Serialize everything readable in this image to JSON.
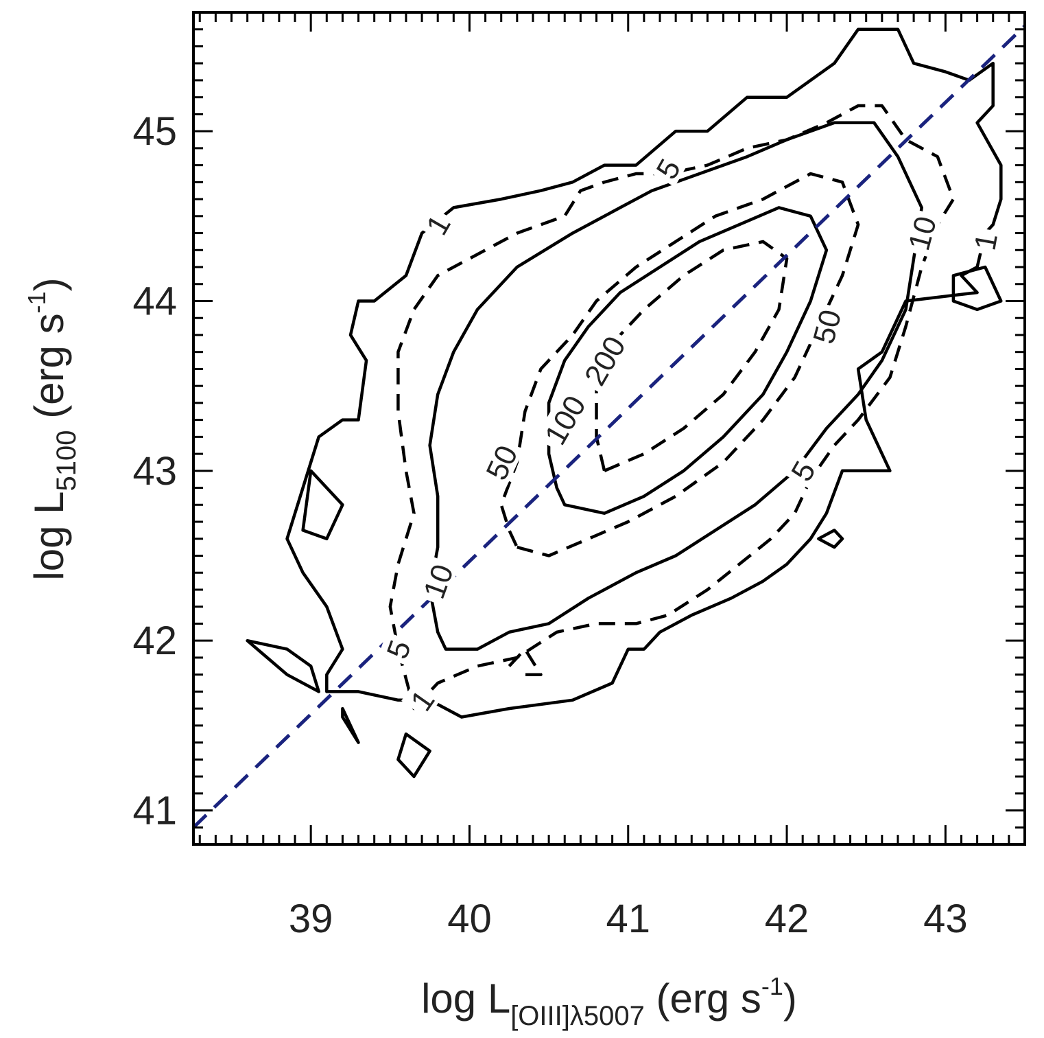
{
  "chart_data": {
    "type": "contour",
    "xlabel": {
      "main": "log L",
      "sub": "[OIII]λ5007",
      "unit_open": " (erg s",
      "sup": "-1",
      "unit_close": ")"
    },
    "ylabel": {
      "main": "log L",
      "sub": "5100",
      "unit_open": " (erg s",
      "sup": "-1",
      "unit_close": ")"
    },
    "xlim": [
      38.26,
      43.5
    ],
    "ylim": [
      40.8,
      45.7
    ],
    "xticks": [
      "39",
      "40",
      "41",
      "42",
      "43"
    ],
    "yticks": [
      "41",
      "42",
      "43",
      "44",
      "45"
    ],
    "x_minor_step": 0.1,
    "y_minor_step": 0.1,
    "contour_levels": [
      "1",
      "5",
      "10",
      "50",
      "100",
      "200"
    ],
    "reference_line": {
      "style": "dashed",
      "color": "#1a237e",
      "points": [
        [
          38.26,
          40.9
        ],
        [
          43.5,
          45.62
        ]
      ]
    },
    "contours": [
      {
        "level": "1",
        "style": "solid",
        "closed": true,
        "points": [
          [
            39.1,
            41.7
          ],
          [
            39.3,
            41.7
          ],
          [
            39.55,
            41.65
          ],
          [
            39.75,
            41.65
          ],
          [
            39.95,
            41.55
          ],
          [
            40.25,
            41.6
          ],
          [
            40.65,
            41.65
          ],
          [
            40.9,
            41.75
          ],
          [
            41.0,
            41.95
          ],
          [
            41.1,
            41.95
          ],
          [
            41.2,
            42.05
          ],
          [
            41.4,
            42.15
          ],
          [
            41.65,
            42.25
          ],
          [
            41.85,
            42.35
          ],
          [
            42.0,
            42.45
          ],
          [
            42.15,
            42.6
          ],
          [
            42.25,
            42.75
          ],
          [
            42.35,
            43.0
          ],
          [
            42.65,
            43.0
          ],
          [
            42.5,
            43.3
          ],
          [
            42.45,
            43.6
          ],
          [
            42.6,
            43.7
          ],
          [
            42.75,
            44.0
          ],
          [
            43.2,
            44.05
          ],
          [
            43.1,
            44.15
          ],
          [
            43.2,
            44.2
          ],
          [
            43.25,
            44.4
          ],
          [
            43.3,
            44.45
          ],
          [
            43.35,
            44.6
          ],
          [
            43.35,
            44.8
          ],
          [
            43.2,
            45.05
          ],
          [
            43.3,
            45.15
          ],
          [
            43.3,
            45.4
          ],
          [
            43.15,
            45.3
          ],
          [
            43.0,
            45.35
          ],
          [
            42.8,
            45.4
          ],
          [
            42.7,
            45.6
          ],
          [
            42.45,
            45.6
          ],
          [
            42.3,
            45.4
          ],
          [
            42.0,
            45.2
          ],
          [
            41.75,
            45.2
          ],
          [
            41.5,
            45.0
          ],
          [
            41.3,
            45.0
          ],
          [
            41.05,
            44.8
          ],
          [
            40.85,
            44.8
          ],
          [
            40.65,
            44.7
          ],
          [
            40.45,
            44.65
          ],
          [
            40.2,
            44.6
          ],
          [
            39.9,
            44.55
          ],
          [
            39.7,
            44.4
          ],
          [
            39.6,
            44.15
          ],
          [
            39.4,
            44.0
          ],
          [
            39.3,
            44.0
          ],
          [
            39.25,
            43.8
          ],
          [
            39.35,
            43.65
          ],
          [
            39.3,
            43.3
          ],
          [
            39.2,
            43.3
          ],
          [
            39.05,
            43.2
          ],
          [
            38.95,
            42.9
          ],
          [
            38.85,
            42.6
          ],
          [
            38.95,
            42.4
          ],
          [
            39.1,
            42.2
          ],
          [
            39.2,
            41.95
          ],
          [
            39.1,
            41.8
          ],
          [
            39.1,
            41.7
          ]
        ]
      },
      {
        "level": "1",
        "style": "solid",
        "closed": true,
        "points": [
          [
            39.0,
            43.0
          ],
          [
            39.2,
            42.8
          ],
          [
            39.1,
            42.6
          ],
          [
            38.95,
            42.65
          ],
          [
            39.0,
            43.0
          ]
        ]
      },
      {
        "level": "1",
        "style": "solid",
        "closed": true,
        "points": [
          [
            38.6,
            42.0
          ],
          [
            38.85,
            41.95
          ],
          [
            39.0,
            41.85
          ],
          [
            39.05,
            41.7
          ],
          [
            38.85,
            41.8
          ],
          [
            38.6,
            42.0
          ]
        ]
      },
      {
        "level": "1",
        "style": "solid",
        "closed": true,
        "points": [
          [
            39.2,
            41.6
          ],
          [
            39.25,
            41.5
          ],
          [
            39.3,
            41.4
          ],
          [
            39.2,
            41.55
          ],
          [
            39.2,
            41.6
          ]
        ]
      },
      {
        "level": "1",
        "style": "solid",
        "closed": true,
        "points": [
          [
            39.55,
            41.3
          ],
          [
            39.65,
            41.2
          ],
          [
            39.75,
            41.35
          ],
          [
            39.6,
            41.45
          ],
          [
            39.55,
            41.3
          ]
        ]
      },
      {
        "level": "1",
        "style": "solid",
        "closed": true,
        "points": [
          [
            42.2,
            42.6
          ],
          [
            42.3,
            42.55
          ],
          [
            42.35,
            42.6
          ],
          [
            42.3,
            42.65
          ],
          [
            42.2,
            42.6
          ]
        ]
      },
      {
        "level": "1",
        "style": "solid",
        "closed": true,
        "points": [
          [
            43.05,
            44.15
          ],
          [
            43.25,
            44.2
          ],
          [
            43.35,
            44.0
          ],
          [
            43.2,
            43.95
          ],
          [
            43.05,
            44.0
          ],
          [
            43.05,
            44.15
          ]
        ]
      },
      {
        "level": "5",
        "style": "dashed",
        "closed": true,
        "points": [
          [
            39.65,
            41.6
          ],
          [
            39.8,
            41.75
          ],
          [
            40.05,
            41.85
          ],
          [
            40.3,
            41.9
          ],
          [
            40.55,
            42.05
          ],
          [
            40.8,
            42.1
          ],
          [
            41.05,
            42.1
          ],
          [
            41.25,
            42.15
          ],
          [
            41.5,
            42.3
          ],
          [
            41.7,
            42.45
          ],
          [
            41.9,
            42.6
          ],
          [
            42.05,
            42.75
          ],
          [
            42.15,
            42.95
          ],
          [
            42.3,
            43.15
          ],
          [
            42.45,
            43.3
          ],
          [
            42.65,
            43.55
          ],
          [
            42.75,
            43.85
          ],
          [
            42.85,
            44.2
          ],
          [
            42.95,
            44.45
          ],
          [
            43.05,
            44.6
          ],
          [
            42.95,
            44.85
          ],
          [
            42.75,
            44.95
          ],
          [
            42.6,
            45.15
          ],
          [
            42.45,
            45.15
          ],
          [
            42.25,
            45.05
          ],
          [
            42.0,
            44.95
          ],
          [
            41.75,
            44.9
          ],
          [
            41.5,
            44.8
          ],
          [
            41.25,
            44.75
          ],
          [
            41.05,
            44.75
          ],
          [
            40.85,
            44.7
          ],
          [
            40.7,
            44.65
          ],
          [
            40.6,
            44.5
          ],
          [
            40.3,
            44.4
          ],
          [
            40.1,
            44.3
          ],
          [
            39.8,
            44.15
          ],
          [
            39.65,
            43.95
          ],
          [
            39.55,
            43.7
          ],
          [
            39.55,
            43.35
          ],
          [
            39.6,
            43.0
          ],
          [
            39.65,
            42.75
          ],
          [
            39.55,
            42.45
          ],
          [
            39.5,
            42.2
          ],
          [
            39.55,
            41.95
          ],
          [
            39.65,
            41.6
          ]
        ]
      },
      {
        "level": "5",
        "style": "dashed",
        "closed": false,
        "points": [
          [
            40.25,
            41.85
          ],
          [
            40.35,
            41.95
          ],
          [
            40.45,
            41.8
          ],
          [
            40.35,
            41.8
          ]
        ]
      },
      {
        "level": "10",
        "style": "solid",
        "closed": true,
        "points": [
          [
            39.85,
            41.95
          ],
          [
            40.05,
            41.95
          ],
          [
            40.25,
            42.05
          ],
          [
            40.5,
            42.1
          ],
          [
            40.75,
            42.25
          ],
          [
            41.05,
            42.4
          ],
          [
            41.3,
            42.5
          ],
          [
            41.55,
            42.65
          ],
          [
            41.8,
            42.8
          ],
          [
            42.05,
            43.0
          ],
          [
            42.25,
            43.25
          ],
          [
            42.45,
            43.45
          ],
          [
            42.6,
            43.65
          ],
          [
            42.75,
            43.95
          ],
          [
            42.8,
            44.25
          ],
          [
            42.85,
            44.55
          ],
          [
            42.7,
            44.85
          ],
          [
            42.55,
            45.05
          ],
          [
            42.3,
            45.05
          ],
          [
            42.0,
            44.95
          ],
          [
            41.75,
            44.85
          ],
          [
            41.45,
            44.75
          ],
          [
            41.15,
            44.65
          ],
          [
            40.95,
            44.55
          ],
          [
            40.65,
            44.4
          ],
          [
            40.3,
            44.2
          ],
          [
            40.05,
            43.95
          ],
          [
            39.9,
            43.7
          ],
          [
            39.8,
            43.45
          ],
          [
            39.75,
            43.15
          ],
          [
            39.8,
            42.85
          ],
          [
            39.8,
            42.55
          ],
          [
            39.75,
            42.3
          ],
          [
            39.8,
            42.05
          ],
          [
            39.85,
            41.95
          ]
        ]
      },
      {
        "level": "50",
        "style": "dashed",
        "closed": true,
        "points": [
          [
            40.3,
            42.55
          ],
          [
            40.5,
            42.5
          ],
          [
            40.75,
            42.6
          ],
          [
            41.0,
            42.7
          ],
          [
            41.3,
            42.85
          ],
          [
            41.6,
            43.05
          ],
          [
            41.85,
            43.3
          ],
          [
            42.05,
            43.55
          ],
          [
            42.2,
            43.85
          ],
          [
            42.35,
            44.15
          ],
          [
            42.45,
            44.45
          ],
          [
            42.35,
            44.7
          ],
          [
            42.15,
            44.75
          ],
          [
            41.85,
            44.6
          ],
          [
            41.55,
            44.5
          ],
          [
            41.3,
            44.35
          ],
          [
            41.05,
            44.2
          ],
          [
            40.8,
            44.0
          ],
          [
            40.65,
            43.8
          ],
          [
            40.45,
            43.6
          ],
          [
            40.35,
            43.35
          ],
          [
            40.3,
            43.05
          ],
          [
            40.2,
            42.8
          ],
          [
            40.25,
            42.65
          ],
          [
            40.3,
            42.55
          ]
        ]
      },
      {
        "level": "100",
        "style": "solid",
        "closed": true,
        "points": [
          [
            40.6,
            42.8
          ],
          [
            40.85,
            42.75
          ],
          [
            41.1,
            42.85
          ],
          [
            41.35,
            43.0
          ],
          [
            41.6,
            43.2
          ],
          [
            41.85,
            43.45
          ],
          [
            42.0,
            43.7
          ],
          [
            42.15,
            44.0
          ],
          [
            42.25,
            44.3
          ],
          [
            42.15,
            44.5
          ],
          [
            41.95,
            44.55
          ],
          [
            41.7,
            44.45
          ],
          [
            41.45,
            44.35
          ],
          [
            41.2,
            44.2
          ],
          [
            40.95,
            44.05
          ],
          [
            40.75,
            43.85
          ],
          [
            40.6,
            43.65
          ],
          [
            40.5,
            43.4
          ],
          [
            40.5,
            43.1
          ],
          [
            40.55,
            42.9
          ],
          [
            40.6,
            42.8
          ]
        ]
      },
      {
        "level": "200",
        "style": "dashed",
        "closed": true,
        "points": [
          [
            40.85,
            43.0
          ],
          [
            41.1,
            43.1
          ],
          [
            41.35,
            43.25
          ],
          [
            41.6,
            43.45
          ],
          [
            41.8,
            43.7
          ],
          [
            41.95,
            43.95
          ],
          [
            42.0,
            44.25
          ],
          [
            41.85,
            44.35
          ],
          [
            41.6,
            44.3
          ],
          [
            41.35,
            44.15
          ],
          [
            41.1,
            43.95
          ],
          [
            40.9,
            43.75
          ],
          [
            40.8,
            43.5
          ],
          [
            40.8,
            43.2
          ],
          [
            40.85,
            43.0
          ]
        ]
      }
    ],
    "contour_label_positions": [
      {
        "text": "1",
        "x": 39.8,
        "y": 44.45,
        "angle": -60
      },
      {
        "text": "1",
        "x": 43.25,
        "y": 44.35,
        "angle": -80
      },
      {
        "text": "1",
        "x": 39.7,
        "y": 41.65,
        "angle": -55
      },
      {
        "text": "5",
        "x": 41.25,
        "y": 44.78,
        "angle": -60
      },
      {
        "text": "5",
        "x": 39.55,
        "y": 41.95,
        "angle": -70
      },
      {
        "text": "5",
        "x": 42.1,
        "y": 43.0,
        "angle": -60
      },
      {
        "text": "10",
        "x": 39.8,
        "y": 42.35,
        "angle": -70
      },
      {
        "text": "10",
        "x": 42.85,
        "y": 44.4,
        "angle": -75
      },
      {
        "text": "50",
        "x": 40.2,
        "y": 43.05,
        "angle": -65
      },
      {
        "text": "50",
        "x": 42.25,
        "y": 43.85,
        "angle": -75
      },
      {
        "text": "100",
        "x": 40.6,
        "y": 43.3,
        "angle": -60
      },
      {
        "text": "200",
        "x": 40.85,
        "y": 43.65,
        "angle": -60
      }
    ]
  }
}
